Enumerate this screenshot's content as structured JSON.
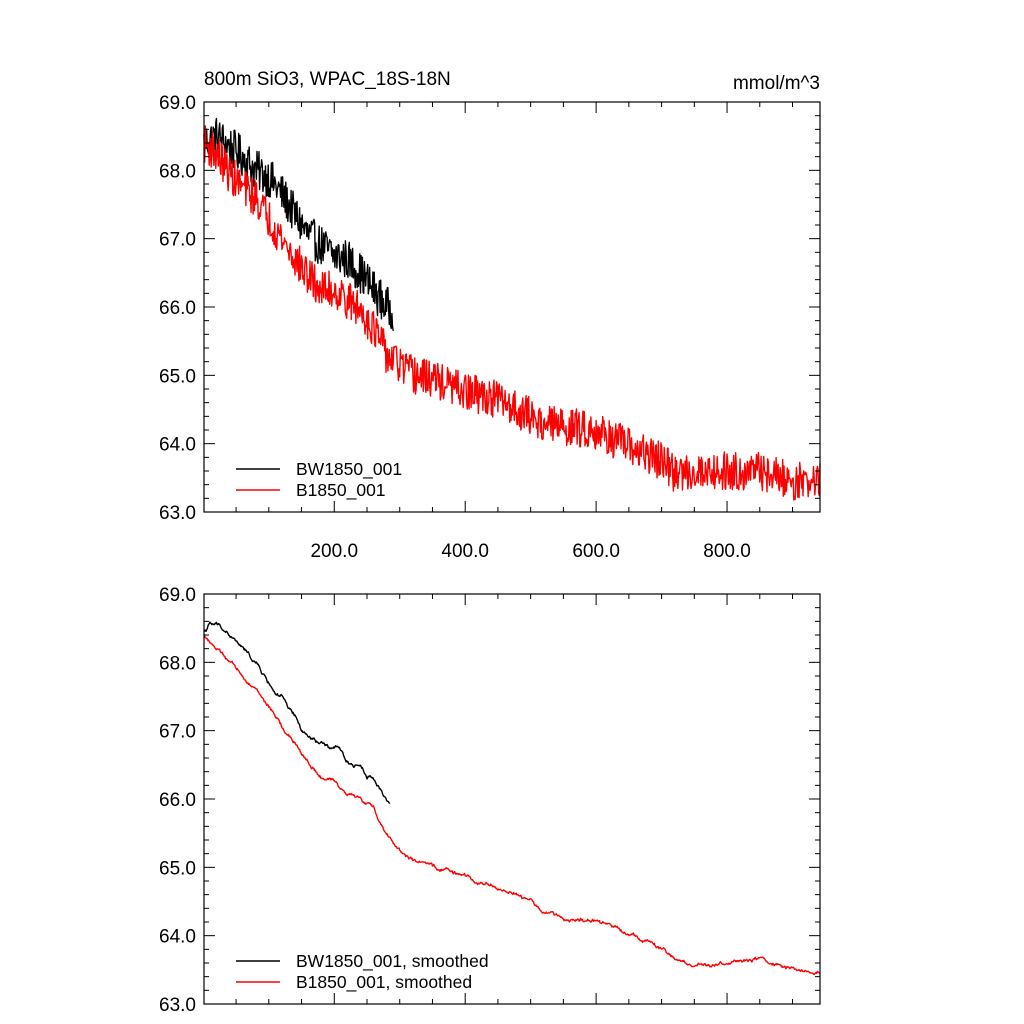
{
  "chart_data": [
    {
      "type": "line",
      "title": "800m SiO3, WPAC_18S-18N",
      "units": "mmol/m^3",
      "xlim": [
        1,
        942
      ],
      "ylim": [
        63.0,
        69.0
      ],
      "xticks": [
        200,
        400,
        600,
        800
      ],
      "xtick_labels": [
        "200.0",
        "400.0",
        "600.0",
        "800.0"
      ],
      "yticks": [
        63,
        64,
        65,
        66,
        67,
        68,
        69
      ],
      "ytick_labels": [
        "63.0",
        "64.0",
        "65.0",
        "66.0",
        "67.0",
        "68.0",
        "69.0"
      ],
      "legend_position": "bottom-left",
      "series": [
        {
          "name": "BW1850_001",
          "color": "#000000",
          "noise": 0.3,
          "x": [
            1,
            20,
            40,
            60,
            80,
            100,
            120,
            140,
            160,
            180,
            200,
            220,
            240,
            260,
            280,
            290
          ],
          "y": [
            68.4,
            68.5,
            68.35,
            68.2,
            68.0,
            67.9,
            67.65,
            67.35,
            67.05,
            66.9,
            66.75,
            66.7,
            66.5,
            66.25,
            66.0,
            65.95
          ]
        },
        {
          "name": "B1850_001",
          "color": "#ff0000",
          "noise": 0.28,
          "x": [
            1,
            20,
            40,
            60,
            80,
            100,
            120,
            140,
            160,
            180,
            200,
            220,
            240,
            260,
            280,
            300,
            320,
            350,
            400,
            450,
            500,
            520,
            550,
            600,
            650,
            700,
            720,
            750,
            800,
            850,
            900,
            942
          ],
          "y": [
            68.4,
            68.25,
            67.95,
            67.75,
            67.6,
            67.3,
            67.0,
            66.7,
            66.45,
            66.25,
            66.25,
            66.1,
            65.95,
            65.7,
            65.3,
            65.15,
            65.0,
            64.95,
            64.75,
            64.65,
            64.4,
            64.3,
            64.25,
            64.2,
            63.95,
            63.75,
            63.55,
            63.6,
            63.6,
            63.6,
            63.45,
            63.45
          ]
        }
      ]
    },
    {
      "type": "line",
      "xlim": [
        1,
        942
      ],
      "ylim": [
        63.0,
        69.0
      ],
      "yticks": [
        63,
        64,
        65,
        66,
        67,
        68,
        69
      ],
      "ytick_labels": [
        "63.0",
        "64.0",
        "65.0",
        "66.0",
        "67.0",
        "68.0",
        "69.0"
      ],
      "legend_position": "bottom-left",
      "series": [
        {
          "name": "BW1850_001, smoothed",
          "color": "#000000",
          "noise": 0.04,
          "x": [
            1,
            10,
            20,
            30,
            40,
            50,
            60,
            70,
            80,
            90,
            100,
            110,
            120,
            130,
            140,
            150,
            160,
            170,
            180,
            190,
            200,
            210,
            220,
            230,
            240,
            250,
            260,
            270,
            280,
            285
          ],
          "y": [
            68.45,
            68.55,
            68.55,
            68.5,
            68.4,
            68.3,
            68.2,
            68.1,
            68.0,
            67.85,
            67.7,
            67.55,
            67.5,
            67.3,
            67.2,
            67.0,
            66.9,
            66.85,
            66.8,
            66.75,
            66.75,
            66.7,
            66.55,
            66.5,
            66.5,
            66.35,
            66.3,
            66.15,
            66.0,
            65.95
          ]
        },
        {
          "name": "B1850_001, smoothed",
          "color": "#ff0000",
          "noise": 0.035,
          "x": [
            1,
            20,
            40,
            60,
            80,
            100,
            120,
            140,
            160,
            180,
            200,
            220,
            240,
            260,
            280,
            300,
            320,
            350,
            380,
            400,
            420,
            450,
            480,
            500,
            520,
            550,
            600,
            640,
            680,
            700,
            720,
            750,
            800,
            850,
            900,
            942
          ],
          "y": [
            68.4,
            68.2,
            68.0,
            67.8,
            67.6,
            67.35,
            67.05,
            66.8,
            66.55,
            66.3,
            66.25,
            66.1,
            66.0,
            65.85,
            65.5,
            65.25,
            65.1,
            65.0,
            64.95,
            64.85,
            64.8,
            64.7,
            64.6,
            64.5,
            64.35,
            64.25,
            64.2,
            64.1,
            63.9,
            63.8,
            63.65,
            63.55,
            63.6,
            63.65,
            63.5,
            63.45
          ]
        }
      ]
    }
  ]
}
